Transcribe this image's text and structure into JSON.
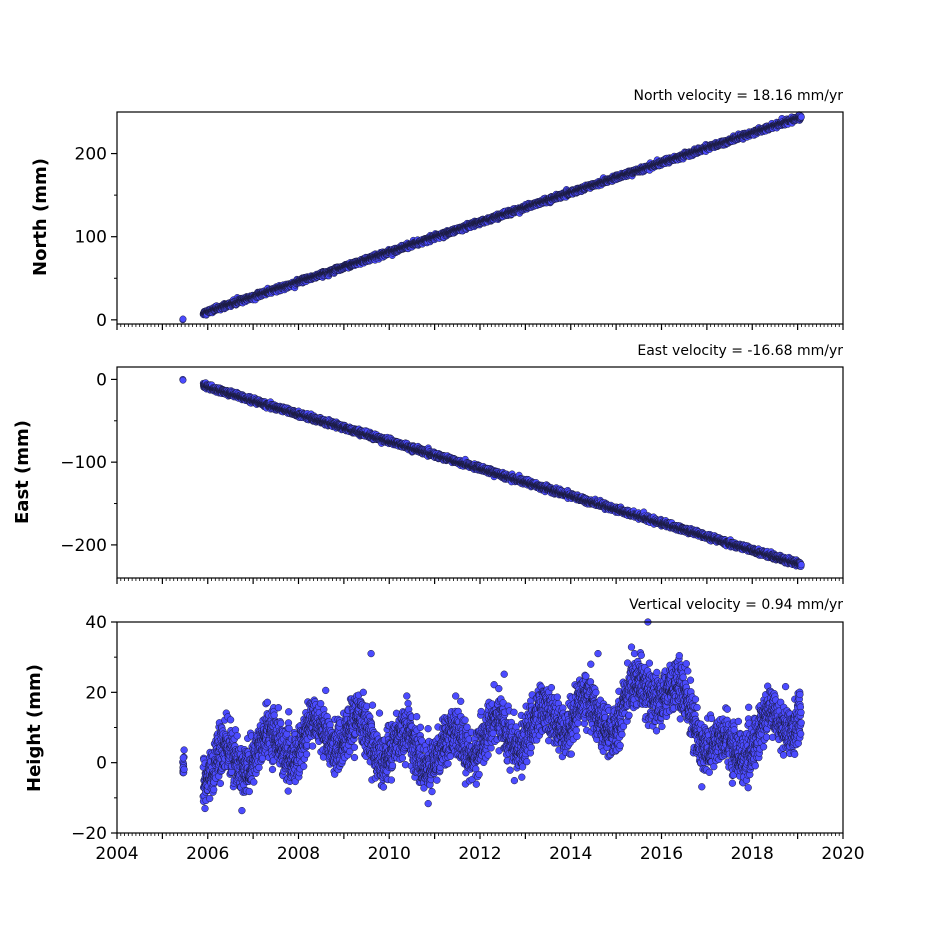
{
  "chart_data": [
    {
      "type": "scatter",
      "annotation": "North velocity = 18.16 mm/yr",
      "ylabel": "North (mm)",
      "xlim": [
        2004,
        2020
      ],
      "ylim": [
        -5,
        250
      ],
      "yticks": [
        0,
        100,
        200
      ],
      "ytick_labels": [
        "0",
        "100",
        "200"
      ],
      "xtick_labels": [],
      "marker_color": "#4b4bff",
      "edge_color": "#1a1a3a",
      "series": [
        {
          "model": "linear",
          "start": [
            2005.45,
            0
          ],
          "end": [
            2019.08,
            244
          ],
          "noise_mm": 1.4,
          "gap": [
            2005.5,
            2005.9
          ]
        }
      ]
    },
    {
      "type": "scatter",
      "annotation": "East velocity = -16.68 mm/yr",
      "ylabel": "East (mm)",
      "xlim": [
        2004,
        2020
      ],
      "ylim": [
        -240,
        15
      ],
      "yticks": [
        0,
        -100,
        -200
      ],
      "ytick_labels": [
        "0",
        "−100",
        "−200"
      ],
      "xtick_labels": [],
      "marker_color": "#4b4bff",
      "edge_color": "#1a1a3a",
      "series": [
        {
          "model": "linear",
          "start": [
            2005.45,
            0
          ],
          "end": [
            2019.08,
            -224
          ],
          "noise_mm": 1.6,
          "gap": [
            2005.5,
            2005.9
          ]
        }
      ]
    },
    {
      "type": "scatter",
      "annotation": "Vertical velocity = 0.94 mm/yr",
      "ylabel": "Height (mm)",
      "xlim": [
        2004,
        2020
      ],
      "ylim": [
        -20,
        40
      ],
      "yticks": [
        -20,
        0,
        20,
        40
      ],
      "ytick_labels": [
        "−20",
        "0",
        "20",
        "40"
      ],
      "xticks": [
        2004,
        2006,
        2008,
        2010,
        2012,
        2014,
        2016,
        2018,
        2020
      ],
      "xtick_labels": [
        "2004",
        "2006",
        "2008",
        "2010",
        "2012",
        "2014",
        "2016",
        "2018",
        "2020"
      ],
      "marker_color": "#4b4bff",
      "edge_color": "#1a1a3a",
      "series": [
        {
          "model": "seasonal",
          "x_range": [
            2005.45,
            2019.08
          ],
          "gap": [
            2005.5,
            2005.9
          ],
          "trend_points": [
            [
              2005.5,
              0
            ],
            [
              2006,
              -2
            ],
            [
              2007,
              3
            ],
            [
              2008,
              6
            ],
            [
              2009,
              9
            ],
            [
              2010,
              5
            ],
            [
              2011,
              3
            ],
            [
              2012,
              7
            ],
            [
              2013,
              9
            ],
            [
              2014,
              14
            ],
            [
              2015,
              13
            ],
            [
              2015.7,
              22
            ],
            [
              2016.5,
              17
            ],
            [
              2017.3,
              2
            ],
            [
              2018,
              7
            ],
            [
              2019,
              14
            ]
          ],
          "annual_amp_mm": 5,
          "noise_mm": 3.5,
          "highlights": [
            [
              2009.6,
              31
            ],
            [
              2015.7,
              40
            ],
            [
              2014.6,
              31
            ]
          ]
        }
      ]
    }
  ]
}
